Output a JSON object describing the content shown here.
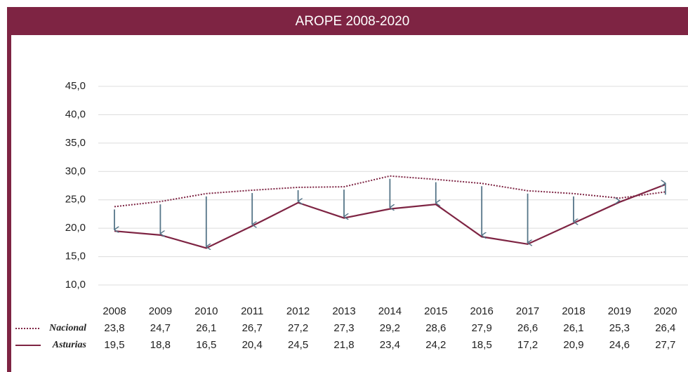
{
  "chart_data": {
    "type": "line",
    "title": "AROPE 2008-2020",
    "categories": [
      "2008",
      "2009",
      "2010",
      "2011",
      "2012",
      "2013",
      "2014",
      "2015",
      "2016",
      "2017",
      "2018",
      "2019",
      "2020"
    ],
    "series": [
      {
        "name": "Nacional",
        "color": "#7e2443",
        "dash": "dotted",
        "values": [
          23.8,
          24.7,
          26.1,
          26.7,
          27.2,
          27.3,
          29.2,
          28.6,
          27.9,
          26.6,
          26.1,
          25.3,
          26.4
        ],
        "value_labels": [
          "23,8",
          "24,7",
          "26,1",
          "26,7",
          "27,2",
          "27,3",
          "29,2",
          "28,6",
          "27,9",
          "26,6",
          "26,1",
          "25,3",
          "26,4"
        ]
      },
      {
        "name": "Asturias",
        "color": "#7e2443",
        "dash": "solid",
        "values": [
          19.5,
          18.8,
          16.5,
          20.4,
          24.5,
          21.8,
          23.4,
          24.2,
          18.5,
          17.2,
          20.9,
          24.6,
          27.7
        ],
        "value_labels": [
          "19,5",
          "18,8",
          "16,5",
          "20,4",
          "24,5",
          "21,8",
          "23,4",
          "24,2",
          "18,5",
          "17,2",
          "20,9",
          "24,6",
          "27,7"
        ]
      }
    ],
    "arrow_color": "#557588",
    "ylim": [
      10,
      45
    ],
    "yticks": [
      {
        "value": 10,
        "label": "10,0"
      },
      {
        "value": 15,
        "label": "15,0"
      },
      {
        "value": 20,
        "label": "20,0"
      },
      {
        "value": 25,
        "label": "25,0"
      },
      {
        "value": 30,
        "label": "30,0"
      },
      {
        "value": 35,
        "label": "35,0"
      },
      {
        "value": 40,
        "label": "40,0"
      },
      {
        "value": 45,
        "label": "45,0"
      }
    ],
    "grid": true
  }
}
